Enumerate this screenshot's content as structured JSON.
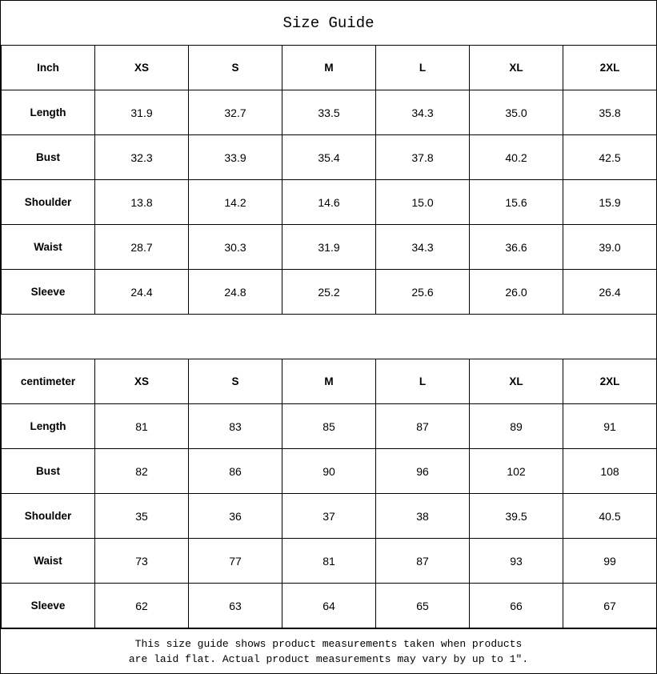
{
  "title": "Size Guide",
  "sizes": [
    "XS",
    "S",
    "M",
    "L",
    "XL",
    "2XL"
  ],
  "tables": [
    {
      "unit": "Inch",
      "rows": [
        {
          "label": "Length",
          "values": [
            "31.9",
            "32.7",
            "33.5",
            "34.3",
            "35.0",
            "35.8"
          ]
        },
        {
          "label": "Bust",
          "values": [
            "32.3",
            "33.9",
            "35.4",
            "37.8",
            "40.2",
            "42.5"
          ]
        },
        {
          "label": "Shoulder",
          "values": [
            "13.8",
            "14.2",
            "14.6",
            "15.0",
            "15.6",
            "15.9"
          ]
        },
        {
          "label": "Waist",
          "values": [
            "28.7",
            "30.3",
            "31.9",
            "34.3",
            "36.6",
            "39.0"
          ]
        },
        {
          "label": "Sleeve",
          "values": [
            "24.4",
            "24.8",
            "25.2",
            "25.6",
            "26.0",
            "26.4"
          ]
        }
      ]
    },
    {
      "unit": "centimeter",
      "rows": [
        {
          "label": "Length",
          "values": [
            "81",
            "83",
            "85",
            "87",
            "89",
            "91"
          ]
        },
        {
          "label": "Bust",
          "values": [
            "82",
            "86",
            "90",
            "96",
            "102",
            "108"
          ]
        },
        {
          "label": "Shoulder",
          "values": [
            "35",
            "36",
            "37",
            "38",
            "39.5",
            "40.5"
          ]
        },
        {
          "label": "Waist",
          "values": [
            "73",
            "77",
            "81",
            "87",
            "93",
            "99"
          ]
        },
        {
          "label": "Sleeve",
          "values": [
            "62",
            "63",
            "64",
            "65",
            "66",
            "67"
          ]
        }
      ]
    }
  ],
  "footer": {
    "line1": "This size guide shows product measurements taken when products",
    "line2": "are laid flat. Actual product measurements may vary by up to 1″."
  }
}
